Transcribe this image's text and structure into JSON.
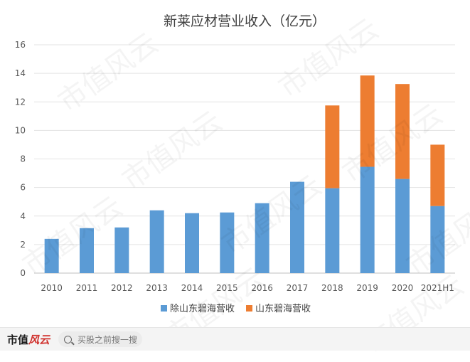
{
  "chart_data": {
    "type": "bar",
    "stacked": true,
    "title": "新莱应材营业收入（亿元）",
    "categories": [
      "2010",
      "2011",
      "2012",
      "2013",
      "2014",
      "2015",
      "2016",
      "2017",
      "2018",
      "2019",
      "2020",
      "2021H1"
    ],
    "series": [
      {
        "name": "除山东碧海营收",
        "color": "#5b9bd5",
        "values": [
          2.4,
          3.15,
          3.2,
          4.4,
          4.2,
          4.25,
          4.9,
          6.4,
          5.95,
          7.45,
          6.6,
          4.7
        ]
      },
      {
        "name": "山东碧海营收",
        "color": "#ed7d31",
        "values": [
          0,
          0,
          0,
          0,
          0,
          0,
          0,
          0,
          5.8,
          6.4,
          6.65,
          4.3
        ]
      }
    ],
    "ylim": [
      0,
      16
    ],
    "yticks": [
      0,
      2,
      4,
      6,
      8,
      10,
      12,
      14,
      16
    ],
    "grid": true,
    "legend": "bottom"
  },
  "watermark": "市值风云",
  "footer": {
    "brand_main": "市值",
    "brand_accent": "风云",
    "search_placeholder": "买股之前搜一搜"
  }
}
